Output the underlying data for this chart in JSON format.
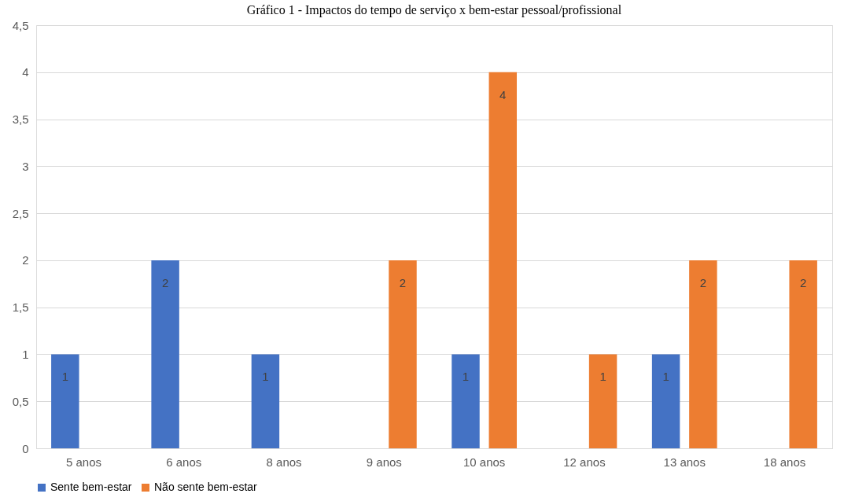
{
  "chart_data": {
    "type": "bar",
    "title": "Gráfico 1 - Impactos do tempo de serviço x bem-estar pessoal/profissional",
    "categories": [
      "5 anos",
      "6 anos",
      "8 anos",
      "9 anos",
      "10 anos",
      "12 anos",
      "13 anos",
      "18 anos"
    ],
    "series": [
      {
        "name": "Sente bem-estar",
        "color": "#4472c4",
        "values": [
          1,
          2,
          1,
          null,
          1,
          null,
          1,
          null
        ]
      },
      {
        "name": "Não sente bem-estar",
        "color": "#ed7d31",
        "values": [
          null,
          null,
          null,
          2,
          4,
          1,
          2,
          2
        ]
      }
    ],
    "ylim": [
      0,
      4.5
    ],
    "yticks": [
      0,
      {
        "value": 0.5,
        "label": "0,5"
      },
      1,
      {
        "value": 1.5,
        "label": "1,5"
      },
      2,
      {
        "value": 2.5,
        "label": "2,5"
      },
      3,
      {
        "value": 3.5,
        "label": "3,5"
      },
      4,
      {
        "value": 4.5,
        "label": "4,5"
      }
    ],
    "grid": "y",
    "legend": "bottom",
    "data_labels": true
  }
}
